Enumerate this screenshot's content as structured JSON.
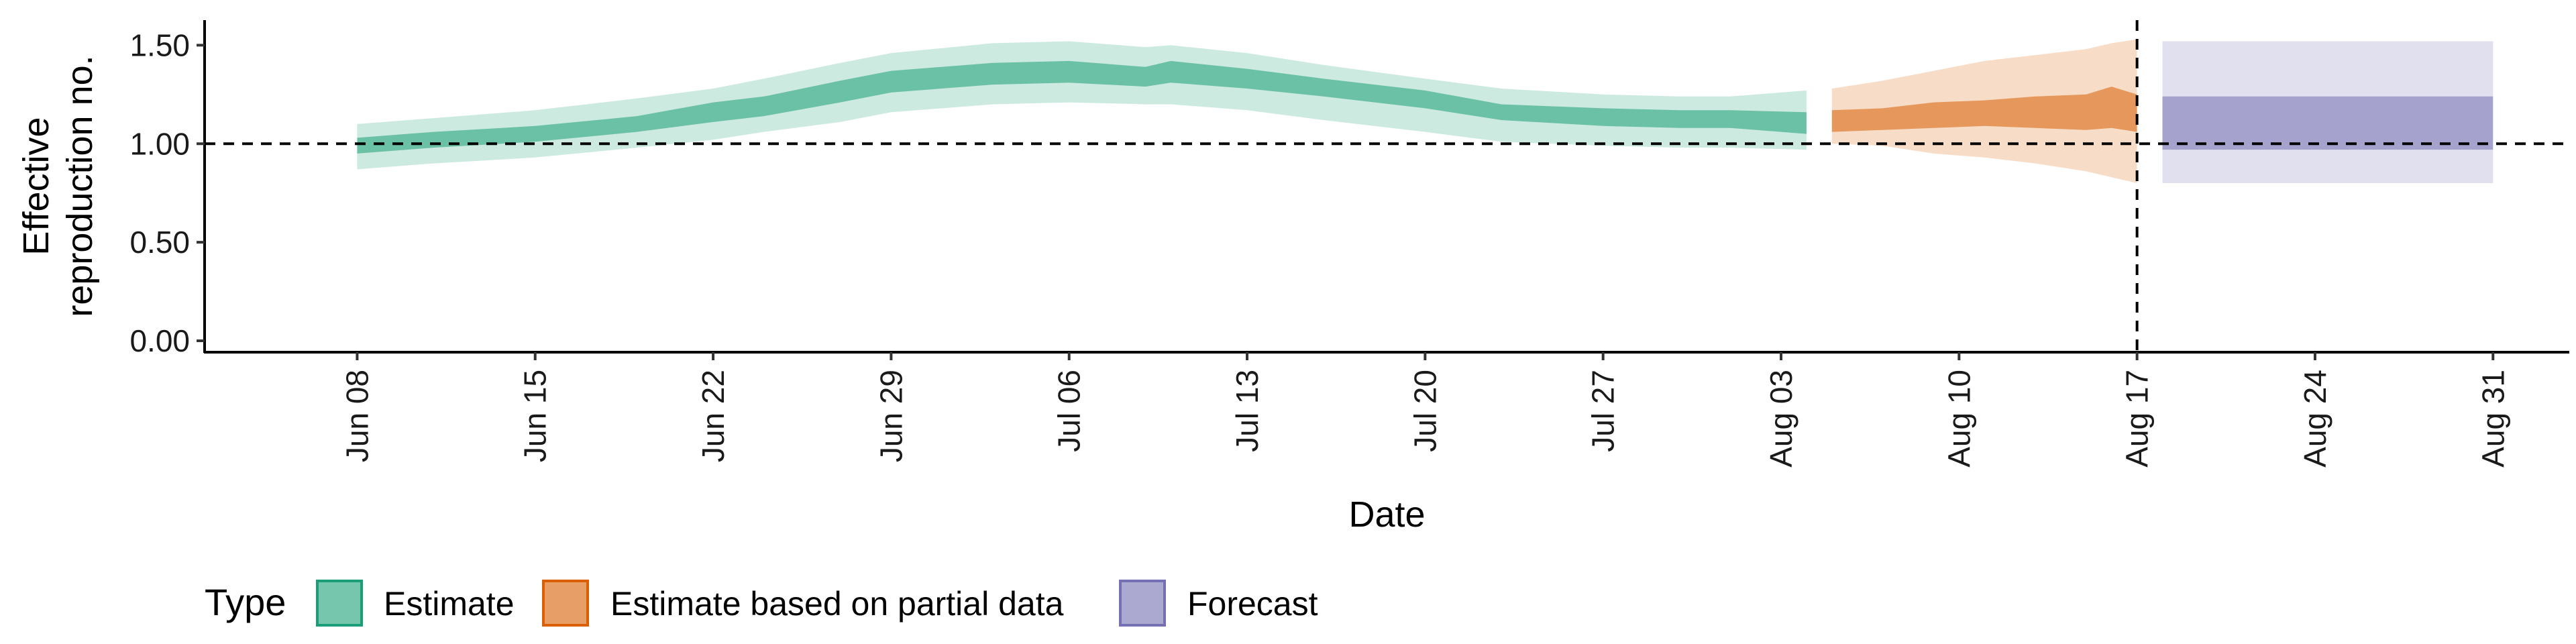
{
  "chart_data": {
    "type": "area",
    "xlabel": "Date",
    "ylabel_lines": [
      "Effective",
      "reproduction no."
    ],
    "ylim": [
      0,
      1.6
    ],
    "y_ticks": [
      0.0,
      0.5,
      1.0,
      1.5
    ],
    "y_tick_labels": [
      "0.00",
      "0.50",
      "1.00",
      "1.50"
    ],
    "x_range": [
      "2020-06-02",
      "2020-09-03"
    ],
    "x_ticks": [
      "2020-06-08",
      "2020-06-15",
      "2020-06-22",
      "2020-06-29",
      "2020-07-06",
      "2020-07-13",
      "2020-07-20",
      "2020-07-27",
      "2020-08-03",
      "2020-08-10",
      "2020-08-17",
      "2020-08-24",
      "2020-08-31"
    ],
    "x_tick_labels": [
      "Jun 08",
      "Jun 15",
      "Jun 22",
      "Jun 29",
      "Jul 06",
      "Jul 13",
      "Jul 20",
      "Jul 27",
      "Aug 03",
      "Aug 10",
      "Aug 17",
      "Aug 24",
      "Aug 31"
    ],
    "reference_line_y": 1.0,
    "forecast_date_line": "2020-08-17",
    "grid": false,
    "legend": {
      "title": "Type",
      "position": "bottom",
      "entries": [
        "Estimate",
        "Estimate based on partial data",
        "Forecast"
      ]
    },
    "colors": {
      "Estimate": "#1b9e77",
      "Estimate based on partial data": "#d95f02",
      "Forecast": "#7570b3"
    },
    "series": [
      {
        "name": "Estimate",
        "dates": [
          "2020-06-08",
          "2020-06-11",
          "2020-06-15",
          "2020-06-19",
          "2020-06-22",
          "2020-06-24",
          "2020-06-27",
          "2020-06-29",
          "2020-07-03",
          "2020-07-06",
          "2020-07-09",
          "2020-07-10",
          "2020-07-13",
          "2020-07-16",
          "2020-07-20",
          "2020-07-23",
          "2020-07-27",
          "2020-07-30",
          "2020-08-01",
          "2020-08-04"
        ],
        "lower90": [
          0.87,
          0.9,
          0.93,
          0.98,
          1.02,
          1.06,
          1.11,
          1.16,
          1.2,
          1.21,
          1.2,
          1.2,
          1.17,
          1.12,
          1.06,
          1.01,
          0.99,
          0.98,
          0.98,
          0.97
        ],
        "lower50": [
          0.95,
          0.98,
          1.01,
          1.06,
          1.11,
          1.14,
          1.21,
          1.26,
          1.3,
          1.31,
          1.29,
          1.31,
          1.28,
          1.24,
          1.18,
          1.12,
          1.09,
          1.08,
          1.08,
          1.05
        ],
        "upper50": [
          1.03,
          1.06,
          1.09,
          1.14,
          1.21,
          1.24,
          1.32,
          1.37,
          1.41,
          1.42,
          1.39,
          1.42,
          1.38,
          1.33,
          1.27,
          1.2,
          1.18,
          1.17,
          1.17,
          1.16
        ],
        "upper90": [
          1.1,
          1.13,
          1.17,
          1.23,
          1.28,
          1.33,
          1.41,
          1.46,
          1.51,
          1.52,
          1.49,
          1.5,
          1.46,
          1.4,
          1.33,
          1.28,
          1.25,
          1.24,
          1.24,
          1.27
        ]
      },
      {
        "name": "Estimate based on partial data",
        "dates": [
          "2020-08-05",
          "2020-08-07",
          "2020-08-09",
          "2020-08-11",
          "2020-08-13",
          "2020-08-15",
          "2020-08-16",
          "2020-08-17"
        ],
        "lower90": [
          1.0,
          0.99,
          0.95,
          0.93,
          0.9,
          0.86,
          0.83,
          0.8
        ],
        "lower50": [
          1.06,
          1.07,
          1.08,
          1.09,
          1.08,
          1.07,
          1.08,
          1.06
        ],
        "upper50": [
          1.17,
          1.18,
          1.21,
          1.22,
          1.24,
          1.25,
          1.29,
          1.25
        ],
        "upper90": [
          1.28,
          1.32,
          1.37,
          1.42,
          1.45,
          1.48,
          1.51,
          1.53
        ]
      },
      {
        "name": "Forecast",
        "dates": [
          "2020-08-18",
          "2020-08-31"
        ],
        "lower90": [
          0.8,
          0.8
        ],
        "lower50": [
          0.97,
          0.97
        ],
        "upper50": [
          1.24,
          1.24
        ],
        "upper90": [
          1.52,
          1.52
        ]
      }
    ]
  }
}
